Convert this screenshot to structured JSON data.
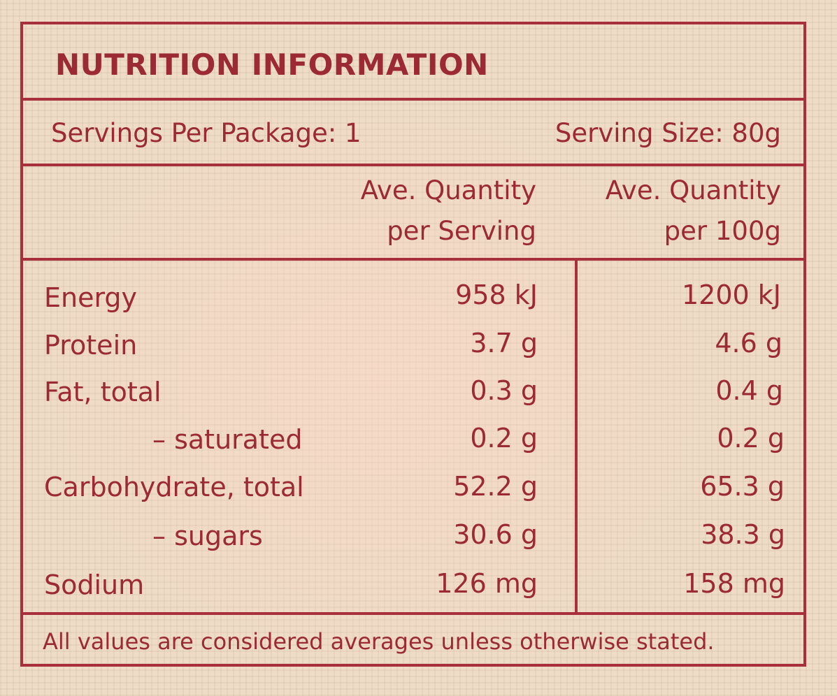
{
  "title": "NUTRITION INFORMATION",
  "servings_per_package": "Servings Per Package: 1",
  "serving_size": "Serving Size: 80g",
  "columns": {
    "per_serving_line1": "Ave. Quantity",
    "per_serving_line2": "per Serving",
    "per_100g_line1": "Ave. Quantity",
    "per_100g_line2": "per 100g"
  },
  "rows": [
    {
      "label": "Energy",
      "per_serving": "958 kJ",
      "per_100g": "1200 kJ"
    },
    {
      "label": "Protein",
      "per_serving": "3.7 g",
      "per_100g": "4.6 g"
    },
    {
      "label": "Fat, total",
      "per_serving": "0.3 g",
      "per_100g": "0.4 g"
    },
    {
      "label": "– saturated",
      "per_serving": "0.2 g",
      "per_100g": "0.2 g"
    },
    {
      "label": "Carbohydrate, total",
      "per_serving": "52.2 g",
      "per_100g": "65.3 g"
    },
    {
      "label": "– sugars",
      "per_serving": "30.6 g",
      "per_100g": "38.3 g"
    },
    {
      "label": "Sodium",
      "per_serving": "126 mg",
      "per_100g": "158 mg"
    }
  ],
  "footnote": "All values are considered averages unless otherwise stated.",
  "colors": {
    "ink": "#9b2a35",
    "rule": "#a8303c",
    "paper": "#eedcc6"
  }
}
